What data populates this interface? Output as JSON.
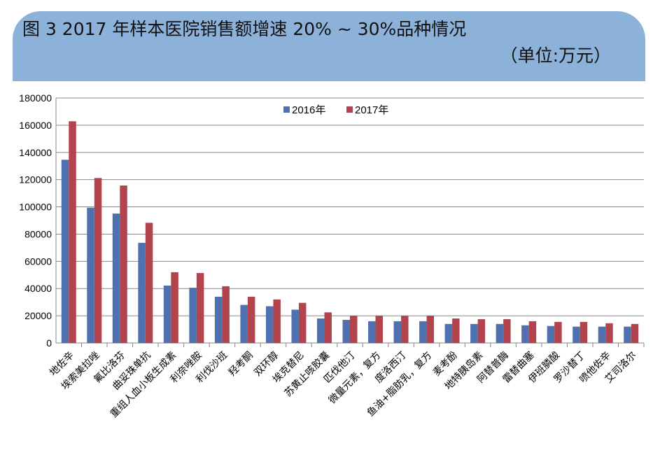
{
  "header": {
    "title": "图 3  2017 年样本医院销售额增速 20% ~ 30%品种情况",
    "unit": "（单位:万元）"
  },
  "colors": {
    "banner": "#8db2da",
    "s2016": "#4f71b0",
    "s2017": "#b2444d"
  },
  "chart_data": {
    "type": "bar",
    "title": "图 3  2017 年样本医院销售额增速 20% ~ 30%品种情况",
    "xlabel": "",
    "ylabel": "",
    "ylim": [
      0,
      180000
    ],
    "yticks": [
      0,
      20000,
      40000,
      60000,
      80000,
      100000,
      120000,
      140000,
      160000,
      180000
    ],
    "grid": true,
    "legend_position": "top-center",
    "categories": [
      "地佐辛",
      "埃索美拉唑",
      "氟比洛芬",
      "曲妥珠单抗",
      "重组人血小板生成素",
      "利奈唑胺",
      "利伐沙班",
      "羟考酮",
      "双环醇",
      "埃克替尼",
      "苏黄止咳胶囊",
      "匹伐他汀",
      "微量元素，复方",
      "度洛西汀",
      "鱼油+脂肪乳，复方",
      "麦考酚",
      "地特胰岛素",
      "阿替普酶",
      "雷替曲塞",
      "伊班膦酸",
      "罗沙替丁",
      "喷他佐辛",
      "艾司洛尔"
    ],
    "series": [
      {
        "name": "2016年",
        "values": [
          134600,
          99400,
          95100,
          73600,
          42200,
          40600,
          34000,
          28000,
          27000,
          24500,
          18000,
          17000,
          16000,
          16000,
          16000,
          14000,
          14000,
          14000,
          13000,
          12500,
          12000,
          12000,
          12000
        ]
      },
      {
        "name": "2017年",
        "values": [
          162900,
          121200,
          115700,
          88300,
          52000,
          51400,
          41700,
          34000,
          32000,
          29500,
          22500,
          20000,
          20000,
          20000,
          20000,
          18000,
          17500,
          17500,
          16000,
          15500,
          15500,
          14500,
          14000
        ]
      }
    ]
  }
}
